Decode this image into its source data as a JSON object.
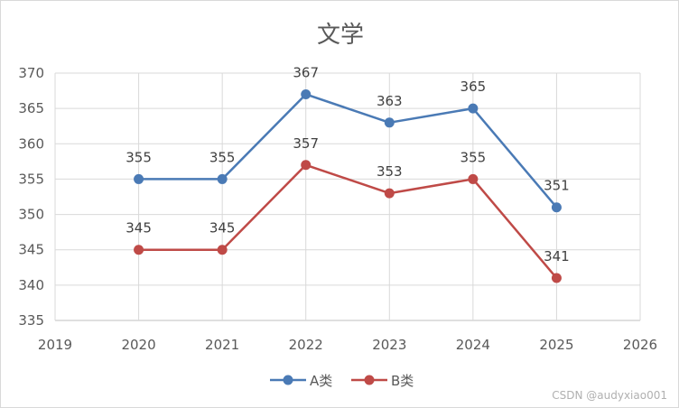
{
  "chart_data": {
    "type": "line",
    "title": "文学",
    "xlabel": "",
    "ylabel": "",
    "x": [
      2020,
      2021,
      2022,
      2023,
      2024,
      2025
    ],
    "xlim": [
      2019,
      2026
    ],
    "xticks": [
      2019,
      2020,
      2021,
      2022,
      2023,
      2024,
      2025,
      2026
    ],
    "ylim": [
      335,
      370
    ],
    "yticks": [
      335,
      340,
      345,
      350,
      355,
      360,
      365,
      370
    ],
    "grid": true,
    "legend_position": "bottom",
    "series": [
      {
        "name": "A类",
        "color": "#4a7ab5",
        "values": [
          355,
          355,
          367,
          363,
          365,
          351
        ]
      },
      {
        "name": "B类",
        "color": "#bf4a47",
        "values": [
          345,
          345,
          357,
          353,
          355,
          341
        ]
      }
    ]
  },
  "watermark": "CSDN @audyxiao001"
}
